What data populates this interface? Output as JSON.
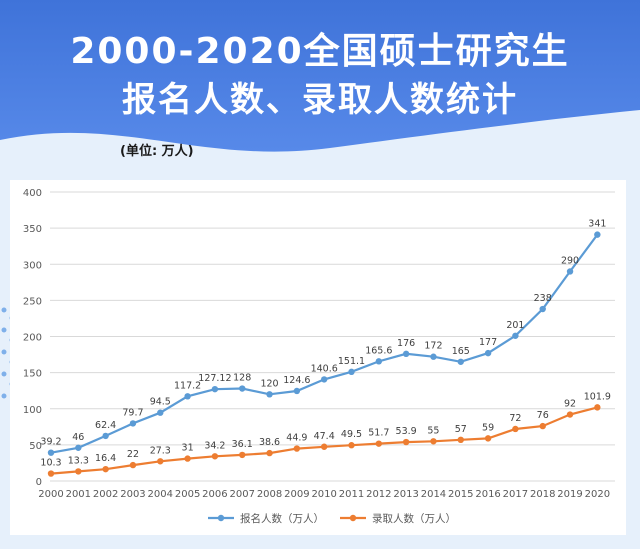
{
  "header": {
    "title_line1": "2000-2020全国硕士研究生",
    "title_line2": "报名人数、录取人数统计",
    "unit": "(单位: 万人)"
  },
  "colors": {
    "banner": "#3f73d9",
    "series_apply": "#5b9bd5",
    "series_admit": "#ed7d31"
  },
  "chart_data": {
    "type": "line",
    "title": "",
    "xlabel": "",
    "ylabel": "",
    "x": [
      "2000",
      "2001",
      "2002",
      "2003",
      "2004",
      "2005",
      "2006",
      "2007",
      "2008",
      "2009",
      "2010",
      "2011",
      "2012",
      "2013",
      "2014",
      "2015",
      "2016",
      "2017",
      "2018",
      "2019",
      "2020"
    ],
    "ylim": [
      0,
      400
    ],
    "yticks": [
      0,
      50,
      100,
      150,
      200,
      250,
      300,
      350,
      400
    ],
    "grid": true,
    "legend": "bottom",
    "series": [
      {
        "name": "报名人数（万人）",
        "values": [
          39.2,
          46,
          62.4,
          79.7,
          94.5,
          117.2,
          127.12,
          128,
          120,
          124.6,
          140.6,
          151.1,
          165.6,
          176,
          172,
          165,
          177,
          201,
          238,
          290,
          341
        ],
        "labels": [
          "39.2",
          "46",
          "62.4",
          "79.7",
          "94.5",
          "117.2",
          "127.12",
          "128",
          "120",
          "124.6",
          "140.6",
          "151.1",
          "165.6",
          "176",
          "172",
          "165",
          "177",
          "201",
          "238",
          "290",
          "341"
        ]
      },
      {
        "name": "录取人数（万人）",
        "values": [
          10.3,
          13.3,
          16.4,
          22,
          27.3,
          31,
          34.2,
          36.1,
          38.6,
          44.9,
          47.4,
          49.5,
          51.7,
          53.9,
          55,
          57,
          59,
          72,
          76,
          92,
          101.9
        ],
        "labels": [
          "10.3",
          "13.3",
          "16.4",
          "22",
          "27.3",
          "31",
          "34.2",
          "36.1",
          "38.6",
          "44.9",
          "47.4",
          "49.5",
          "51.7",
          "53.9",
          "55",
          "57",
          "59",
          "72",
          "76",
          "92",
          "101.9"
        ]
      }
    ]
  }
}
